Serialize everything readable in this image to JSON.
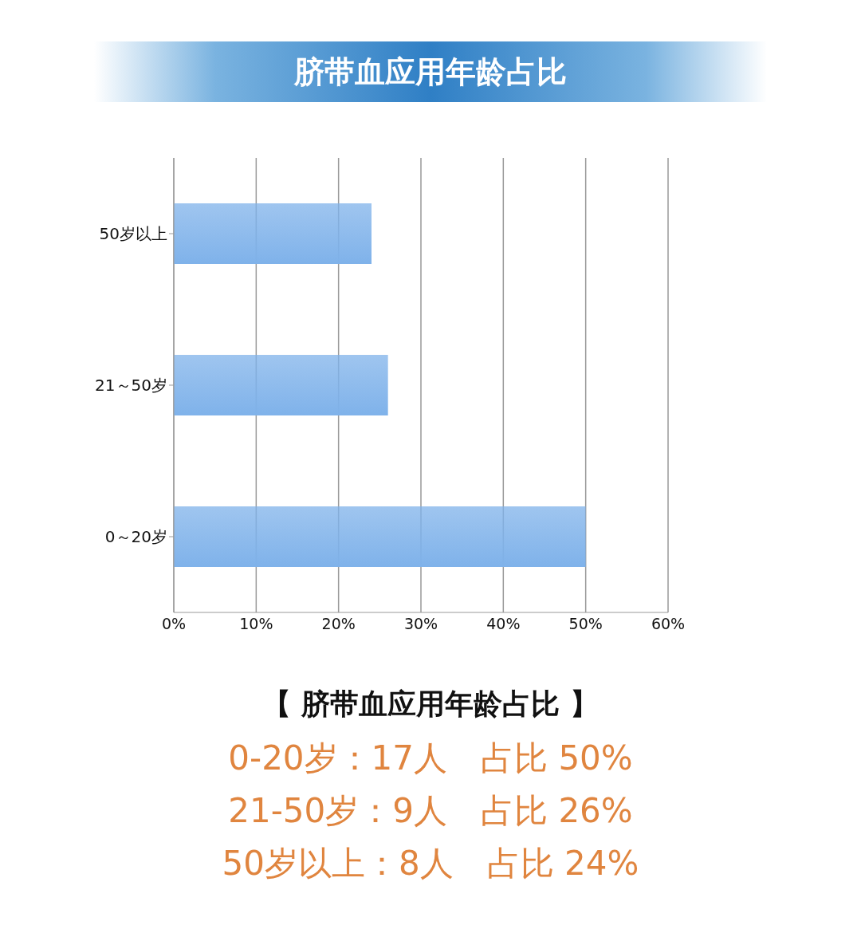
{
  "chart_data": {
    "type": "bar",
    "orientation": "horizontal",
    "title": "脐带血应用年龄占比",
    "categories": [
      "50岁以上",
      "21～50岁",
      "0～20岁"
    ],
    "values": [
      24,
      26,
      50
    ],
    "color": "#7fb2ea",
    "xlim": [
      0,
      60
    ],
    "xticks": [
      {
        "value": 0,
        "label": "0%"
      },
      {
        "value": 10,
        "label": "10%"
      },
      {
        "value": 20,
        "label": "20%"
      },
      {
        "value": 30,
        "label": "30%"
      },
      {
        "value": 40,
        "label": "40%"
      },
      {
        "value": 50,
        "label": "50%"
      },
      {
        "value": 60,
        "label": "60%"
      }
    ],
    "grid": "x",
    "legend": false,
    "annotations": [
      "【 脐带血应用年龄占比 】",
      "0-20岁：17人　占比 50%",
      "21-50岁：9人　占比 26%",
      "50岁以上：8人　占比 24%"
    ]
  }
}
